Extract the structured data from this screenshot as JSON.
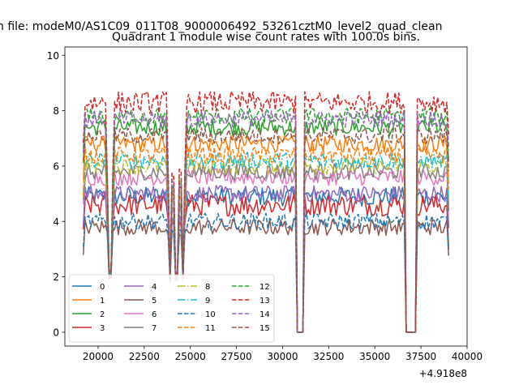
{
  "chart_data": {
    "type": "line",
    "suptitle": "n file: modeM0/AS1C09_011T08_9000006492_53261cztM0_level2_quad_clean",
    "title": "Quadrant 1 module wise count rates with 100.0s bins.",
    "xlabel": "",
    "ylabel": "",
    "offset_label": "+4.918e8",
    "xlim": [
      18200,
      40000
    ],
    "ylim": [
      -0.5,
      10.3
    ],
    "xticks": [
      20000,
      22500,
      25000,
      27500,
      30000,
      32500,
      35000,
      37500,
      40000
    ],
    "yticks": [
      0,
      2,
      4,
      6,
      8,
      10
    ],
    "x_range": [
      19200,
      39000
    ],
    "bin_seconds": 100,
    "gaps": [
      [
        30750,
        31150
      ],
      [
        36650,
        37250
      ]
    ],
    "dips": [
      [
        20650,
        2.1
      ],
      [
        23900,
        1.95
      ],
      [
        24250,
        2.05
      ],
      [
        24600,
        2.0
      ]
    ],
    "legend_location": "lower-left",
    "legend_columns": 4,
    "series": [
      {
        "name": "0",
        "level": 4.9,
        "noise": 0.35,
        "color": "#1f77b4",
        "dash": "solid"
      },
      {
        "name": "1",
        "level": 6.8,
        "noise": 0.3,
        "color": "#ff7f0e",
        "dash": "solid"
      },
      {
        "name": "2",
        "level": 7.4,
        "noise": 0.3,
        "color": "#2ca02c",
        "dash": "solid"
      },
      {
        "name": "3",
        "level": 4.6,
        "noise": 0.4,
        "color": "#d62728",
        "dash": "solid"
      },
      {
        "name": "4",
        "level": 5.0,
        "noise": 0.3,
        "color": "#9467bd",
        "dash": "solid"
      },
      {
        "name": "5",
        "level": 3.8,
        "noise": 0.3,
        "color": "#8c564b",
        "dash": "solid"
      },
      {
        "name": "6",
        "level": 5.6,
        "noise": 0.3,
        "color": "#e377c2",
        "dash": "solid"
      },
      {
        "name": "7",
        "level": 5.8,
        "noise": 0.3,
        "color": "#7f7f7f",
        "dash": "solid"
      },
      {
        "name": "8",
        "level": 6.0,
        "noise": 0.3,
        "color": "#bcbd22",
        "dash": "dashdot"
      },
      {
        "name": "9",
        "level": 6.2,
        "noise": 0.3,
        "color": "#17becf",
        "dash": "dashdot"
      },
      {
        "name": "10",
        "level": 4.0,
        "noise": 0.3,
        "color": "#1f77b4",
        "dash": "dashed"
      },
      {
        "name": "11",
        "level": 6.4,
        "noise": 0.3,
        "color": "#ff7f0e",
        "dash": "dashed"
      },
      {
        "name": "12",
        "level": 7.8,
        "noise": 0.3,
        "color": "#2ca02c",
        "dash": "dashed"
      },
      {
        "name": "13",
        "level": 8.3,
        "noise": 0.4,
        "color": "#d62728",
        "dash": "dashed"
      },
      {
        "name": "14",
        "level": 7.7,
        "noise": 0.3,
        "color": "#9467bd",
        "dash": "dashed"
      },
      {
        "name": "15",
        "level": 7.1,
        "noise": 0.3,
        "color": "#8c564b",
        "dash": "dashed"
      }
    ]
  }
}
